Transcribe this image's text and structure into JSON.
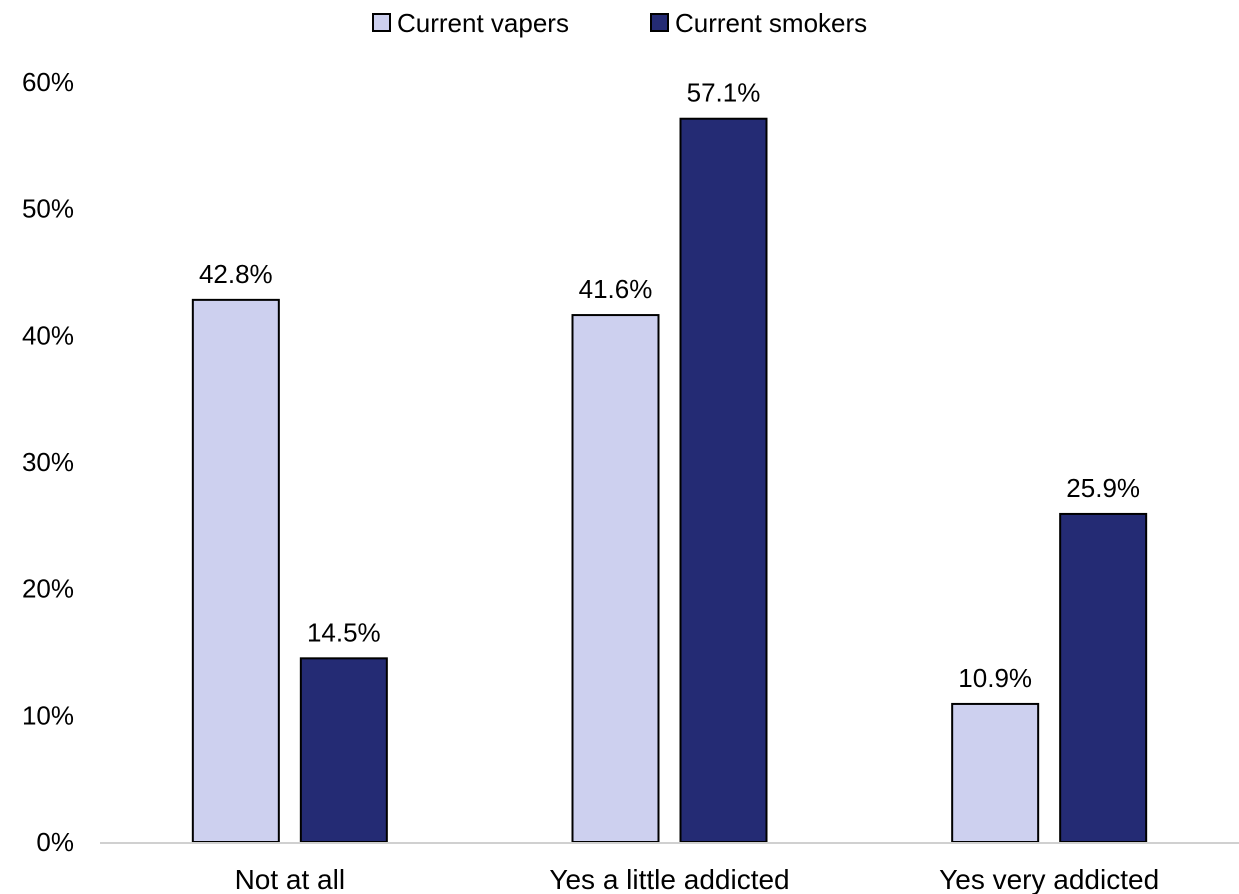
{
  "chart_data": {
    "type": "bar",
    "title": "",
    "xlabel": "",
    "ylabel": "",
    "categories": [
      "Not at all",
      "Yes a little addicted",
      "Yes very addicted"
    ],
    "series": [
      {
        "name": "Current vapers",
        "values": [
          42.8,
          41.6,
          10.9
        ],
        "labels": [
          "42.8%",
          "41.6%",
          "10.9%"
        ],
        "color": "#cdd0ef"
      },
      {
        "name": "Current smokers",
        "values": [
          14.5,
          57.1,
          25.9
        ],
        "labels": [
          "14.5%",
          "57.1%",
          "25.9%"
        ],
        "color": "#242b74"
      }
    ],
    "ylim": [
      0,
      60
    ],
    "yticks": [
      0,
      10,
      20,
      30,
      40,
      50,
      60
    ],
    "ytick_labels": [
      "0%",
      "10%",
      "20%",
      "30%",
      "40%",
      "50%",
      "60%"
    ],
    "grid": false,
    "legend_position": "top-center",
    "bar_outline_color": "#000000",
    "axis_color": "#d0d0d0"
  }
}
